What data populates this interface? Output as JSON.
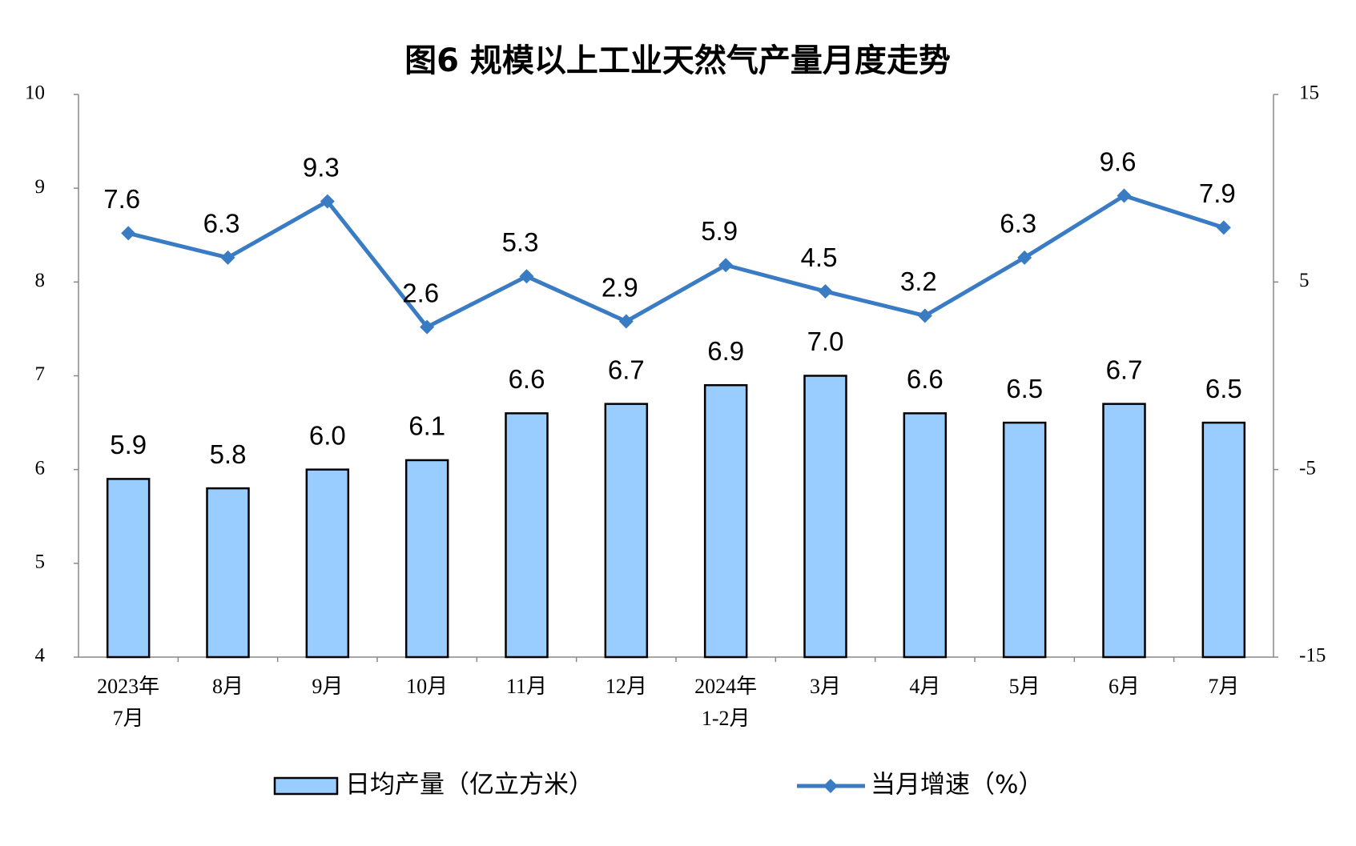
{
  "chart_data": {
    "type": "bar-line",
    "title": "图6  规模以上工业天然气产量月度走势",
    "categories": [
      [
        "2023年",
        "7月"
      ],
      [
        "8月"
      ],
      [
        "9月"
      ],
      [
        "10月"
      ],
      [
        "11月"
      ],
      [
        "12月"
      ],
      [
        "2024年",
        "1-2月"
      ],
      [
        "3月"
      ],
      [
        "4月"
      ],
      [
        "5月"
      ],
      [
        "6月"
      ],
      [
        "7月"
      ]
    ],
    "series": [
      {
        "name": "日均产量（亿立方米）",
        "type": "bar",
        "color": "#99ccff",
        "values": [
          5.9,
          5.8,
          6.0,
          6.1,
          6.6,
          6.7,
          6.9,
          7.0,
          6.6,
          6.5,
          6.7,
          6.5
        ],
        "value_labels": [
          "5.9",
          "5.8",
          "6.0",
          "6.1",
          "6.6",
          "6.7",
          "6.9",
          "7.0",
          "6.6",
          "6.5",
          "6.7",
          "6.5"
        ]
      },
      {
        "name": "当月增速（%）",
        "type": "line",
        "color": "#3a7cc4",
        "axis": "y2",
        "values": [
          7.6,
          6.3,
          9.3,
          2.6,
          5.3,
          2.9,
          5.9,
          4.5,
          3.2,
          6.3,
          9.6,
          7.9
        ]
      }
    ],
    "ylim": [
      4,
      10
    ],
    "yticks": [
      4,
      5,
      6,
      7,
      8,
      9,
      10
    ],
    "y2lim": [
      -15,
      15
    ],
    "y2ticks": [
      -15,
      -5,
      5,
      15
    ],
    "grid": false,
    "legend": "bottom"
  }
}
